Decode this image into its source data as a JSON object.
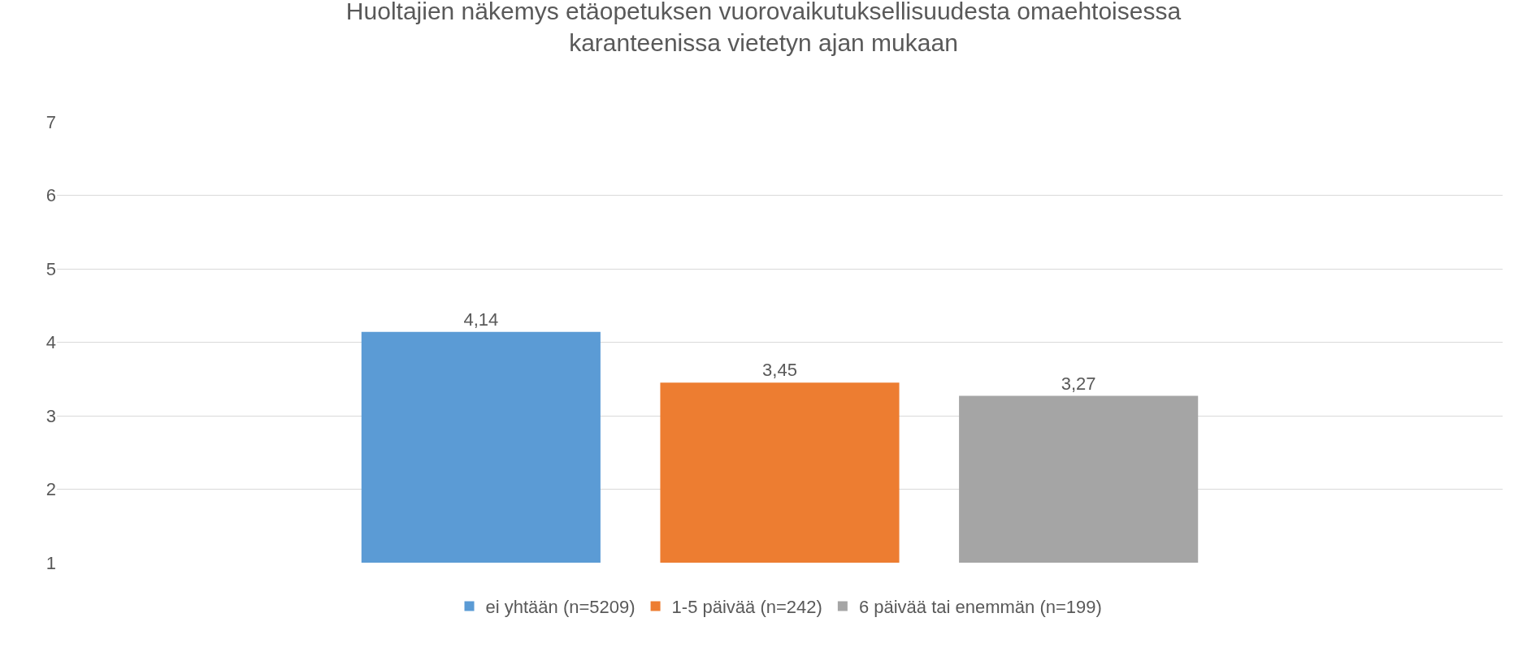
{
  "chart_data": {
    "type": "bar",
    "title": "Huoltajien näkemys etäopetuksen vuorovaikutuksellisuudesta omaehtoisessa\nkaranteenissa vietetyn ajan mukaan",
    "categories": [
      null
    ],
    "series": [
      {
        "name": "ei yhtään (n=5209)",
        "color": "#5b9bd5",
        "values": [
          4.14
        ],
        "value_labels": [
          "4,14"
        ]
      },
      {
        "name": "1-5 päivää (n=242)",
        "color": "#ed7d31",
        "values": [
          3.45
        ],
        "value_labels": [
          "3,45"
        ]
      },
      {
        "name": "6 päivää tai enemmän (n=199)",
        "color": "#a5a5a5",
        "values": [
          3.27
        ],
        "value_labels": [
          "3,27"
        ]
      }
    ],
    "ylim": [
      1,
      7
    ],
    "yticks": [
      1,
      2,
      3,
      4,
      5,
      6,
      7
    ],
    "grid": "y",
    "legend": "bottom"
  }
}
